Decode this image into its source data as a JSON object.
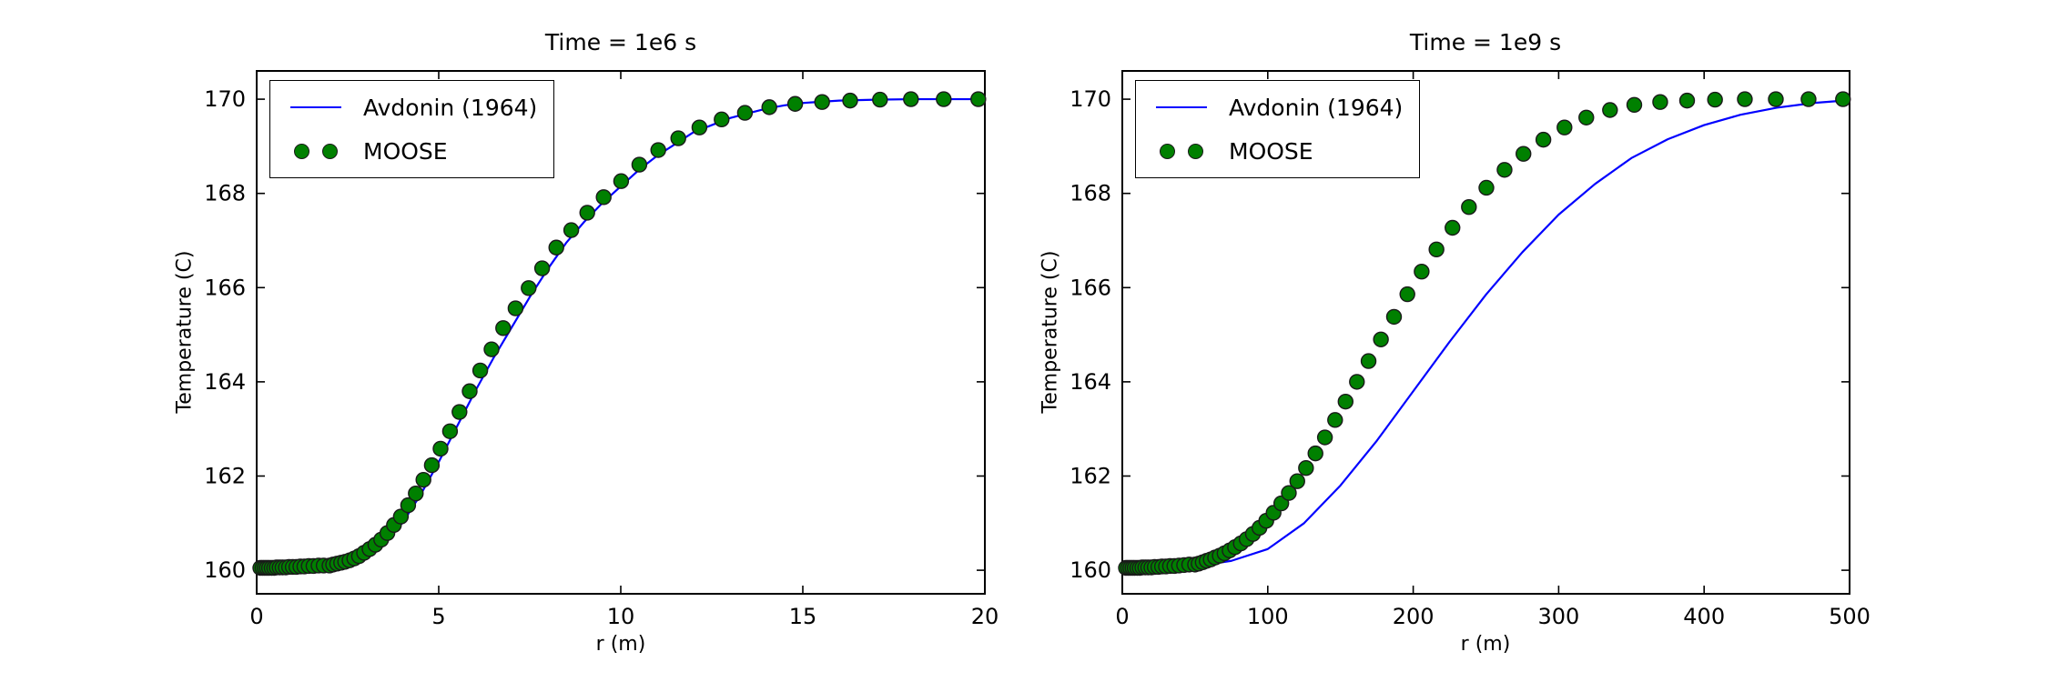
{
  "figure": {
    "background": "#ffffff"
  },
  "colors": {
    "line": "#0000ff",
    "marker_fill": "#008000",
    "marker_edge": "#1a1a1a",
    "axis": "#000000",
    "text": "#000000"
  },
  "legend": {
    "items": [
      {
        "label": "Avdonin (1964)",
        "type": "line"
      },
      {
        "label": "MOOSE",
        "type": "markers"
      }
    ]
  },
  "chart_data": [
    {
      "type": "line",
      "title": "Time = 1e6 s",
      "xlabel": "r (m)",
      "ylabel": "Temperature (C)",
      "xlim": [
        0,
        20
      ],
      "ylim": [
        159.5,
        170.6
      ],
      "xticks": [
        0,
        5,
        10,
        15,
        20
      ],
      "yticks": [
        160,
        162,
        164,
        166,
        168,
        170
      ],
      "grid": false,
      "legend_position": "upper left",
      "series": [
        {
          "name": "Avdonin (1964)",
          "type": "line",
          "color": "#0000ff",
          "x": [
            0,
            0.5,
            1,
            1.5,
            2,
            2.5,
            3,
            3.5,
            4,
            4.5,
            5,
            5.5,
            6,
            6.5,
            7,
            7.5,
            8,
            8.5,
            9,
            9.5,
            10,
            10.5,
            11,
            11.5,
            12,
            12.5,
            13,
            13.5,
            14,
            14.5,
            15,
            16,
            17,
            18,
            19,
            20
          ],
          "y": [
            160.02,
            160.02,
            160.03,
            160.05,
            160.1,
            160.2,
            160.35,
            160.62,
            161.0,
            161.6,
            162.3,
            163.05,
            163.8,
            164.5,
            165.15,
            165.8,
            166.4,
            166.95,
            167.4,
            167.8,
            168.15,
            168.5,
            168.8,
            169.05,
            169.3,
            169.45,
            169.6,
            169.7,
            169.8,
            169.87,
            169.92,
            169.97,
            169.99,
            170.0,
            170.0,
            170.0
          ]
        },
        {
          "name": "MOOSE",
          "type": "scatter",
          "color": "#008000",
          "x": [
            0.1,
            0.16,
            0.22,
            0.28,
            0.34,
            0.41,
            0.48,
            0.55,
            0.63,
            0.71,
            0.8,
            0.89,
            0.99,
            1.09,
            1.2,
            1.31,
            1.43,
            1.56,
            1.7,
            1.84,
            2.0,
            2.1,
            2.21,
            2.32,
            2.43,
            2.55,
            2.68,
            2.81,
            2.95,
            3.1,
            3.26,
            3.42,
            3.59,
            3.77,
            3.96,
            4.16,
            4.37,
            4.58,
            4.81,
            5.05,
            5.31,
            5.57,
            5.85,
            6.14,
            6.45,
            6.77,
            7.11,
            7.47,
            7.84,
            8.23,
            8.64,
            9.08,
            9.53,
            10.01,
            10.51,
            11.03,
            11.58,
            12.16,
            12.77,
            13.41,
            14.08,
            14.79,
            15.53,
            16.3,
            17.12,
            17.97,
            18.87,
            19.82
          ],
          "y": [
            160.05,
            160.05,
            160.05,
            160.05,
            160.05,
            160.05,
            160.05,
            160.06,
            160.06,
            160.06,
            160.06,
            160.07,
            160.07,
            160.07,
            160.08,
            160.08,
            160.09,
            160.09,
            160.1,
            160.1,
            160.1,
            160.12,
            160.14,
            160.16,
            160.18,
            160.21,
            160.25,
            160.3,
            160.37,
            160.45,
            160.54,
            160.65,
            160.79,
            160.96,
            161.14,
            161.38,
            161.63,
            161.92,
            162.23,
            162.58,
            162.95,
            163.36,
            163.8,
            164.24,
            164.69,
            165.14,
            165.56,
            165.99,
            166.41,
            166.85,
            167.22,
            167.59,
            167.92,
            168.26,
            168.61,
            168.92,
            169.17,
            169.4,
            169.57,
            169.71,
            169.83,
            169.9,
            169.94,
            169.97,
            169.99,
            170.0,
            170.0,
            170.0
          ]
        }
      ]
    },
    {
      "type": "line",
      "title": "Time = 1e9 s",
      "xlabel": "r (m)",
      "ylabel": "Temperature (C)",
      "xlim": [
        0,
        500
      ],
      "ylim": [
        159.5,
        170.6
      ],
      "xticks": [
        0,
        100,
        200,
        300,
        400,
        500
      ],
      "yticks": [
        160,
        162,
        164,
        166,
        168,
        170
      ],
      "grid": false,
      "legend_position": "upper left",
      "series": [
        {
          "name": "Avdonin (1964)",
          "type": "line",
          "color": "#0000ff",
          "x": [
            0,
            25,
            50,
            75,
            100,
            125,
            150,
            175,
            200,
            225,
            250,
            275,
            300,
            325,
            350,
            375,
            400,
            425,
            450,
            475,
            500
          ],
          "y": [
            160.02,
            160.03,
            160.08,
            160.2,
            160.45,
            161.0,
            161.8,
            162.75,
            163.8,
            164.85,
            165.85,
            166.75,
            167.55,
            168.2,
            168.75,
            169.15,
            169.45,
            169.67,
            169.82,
            169.92,
            169.98
          ]
        },
        {
          "name": "MOOSE",
          "type": "scatter",
          "color": "#008000",
          "x": [
            2.5,
            4.0,
            5.5,
            7.0,
            8.5,
            10.3,
            12.0,
            13.8,
            15.8,
            17.8,
            20.0,
            22.3,
            24.8,
            27.3,
            30.0,
            32.8,
            35.8,
            39.0,
            42.5,
            46.0,
            50.0,
            52.5,
            55.3,
            58.0,
            60.8,
            63.8,
            67.0,
            70.3,
            73.8,
            77.5,
            81.5,
            85.5,
            89.8,
            94.3,
            99.0,
            104.0,
            109.3,
            114.5,
            120.3,
            126.3,
            132.8,
            139.3,
            146.3,
            153.5,
            161.3,
            169.3,
            177.8,
            186.8,
            196.0,
            205.8,
            216.0,
            227.0,
            238.3,
            250.3,
            262.8,
            275.8,
            289.5,
            304.0,
            319.0,
            335.3,
            352.0,
            369.8,
            388.3,
            407.5,
            428.0,
            449.3,
            471.8,
            495.5
          ],
          "y": [
            160.05,
            160.05,
            160.05,
            160.05,
            160.05,
            160.05,
            160.05,
            160.06,
            160.06,
            160.06,
            160.06,
            160.07,
            160.07,
            160.08,
            160.08,
            160.09,
            160.09,
            160.1,
            160.11,
            160.12,
            160.12,
            160.14,
            160.17,
            160.2,
            160.23,
            160.27,
            160.31,
            160.36,
            160.42,
            160.49,
            160.57,
            160.66,
            160.77,
            160.9,
            161.05,
            161.22,
            161.42,
            161.64,
            161.89,
            162.17,
            162.48,
            162.82,
            163.19,
            163.58,
            164.0,
            164.44,
            164.9,
            165.38,
            165.86,
            166.34,
            166.81,
            167.27,
            167.71,
            168.12,
            168.5,
            168.84,
            169.14,
            169.4,
            169.61,
            169.77,
            169.88,
            169.94,
            169.97,
            169.99,
            170.0,
            170.0,
            170.0,
            170.0
          ]
        }
      ]
    }
  ]
}
